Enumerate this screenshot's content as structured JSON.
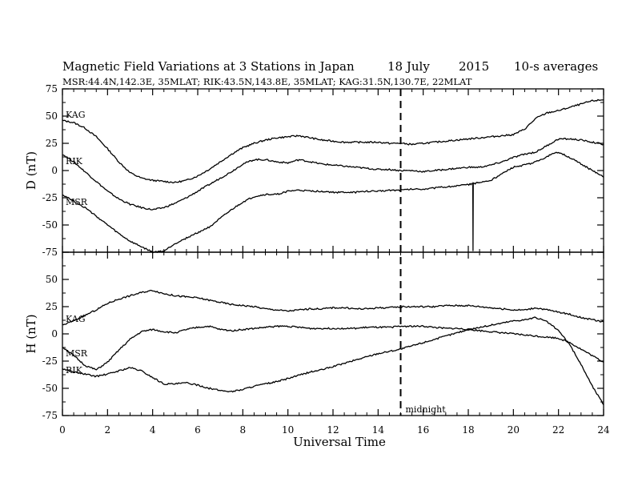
{
  "chart_data": {
    "type": "line",
    "title": "Magnetic Field Variations at 3 Stations in Japan",
    "title_date": "18 July",
    "title_year": "2015",
    "title_note": "10-s averages",
    "subtitle": "MSR:44.4N,142.3E, 35MLAT;   RIK:43.5N,143.8E, 35MLAT;   KAG:31.5N,130.7E, 22MLAT",
    "xlabel": "Universal Time",
    "x_ticks": [
      "0",
      "2",
      "4",
      "6",
      "8",
      "10",
      "12",
      "14",
      "16",
      "18",
      "20",
      "22",
      "24"
    ],
    "xlim": [
      0,
      24
    ],
    "midnight": {
      "x": 15,
      "label": "midnight"
    },
    "panels": [
      {
        "ylabel": "D (nT)",
        "ylim": [
          -75,
          75
        ],
        "y_ticks": [
          "75",
          "50",
          "25",
          "0",
          "-25",
          "-50",
          "-75"
        ],
        "series": [
          {
            "name": "KAG",
            "x": [
              0,
              0.5,
              1,
              1.5,
              2,
              2.5,
              3,
              3.5,
              4,
              4.5,
              5,
              5.5,
              6,
              6.5,
              7,
              7.5,
              8,
              8.5,
              9,
              9.5,
              10,
              10.5,
              11,
              11.5,
              12,
              12.5,
              13,
              13.5,
              14,
              14.5,
              15,
              15.5,
              16,
              16.5,
              17,
              17.5,
              18,
              18.5,
              19,
              19.5,
              20,
              20.5,
              21,
              21.5,
              22,
              22.5,
              23,
              23.5,
              24
            ],
            "y": [
              46,
              44,
              39,
              31,
              20,
              8,
              -2,
              -7,
              -9,
              -10,
              -11,
              -9,
              -5,
              1,
              8,
              15,
              21,
              25,
              28,
              30,
              31,
              32,
              30,
              28,
              27,
              26,
              26,
              26,
              26,
              25,
              25,
              24,
              25,
              26,
              27,
              28,
              29,
              30,
              31,
              32,
              33,
              38,
              48,
              53,
              55,
              58,
              61,
              64,
              65
            ]
          },
          {
            "name": "RIK",
            "x": [
              0,
              0.5,
              1,
              1.5,
              2,
              2.5,
              3,
              3.5,
              4,
              4.5,
              5,
              5.5,
              6,
              6.5,
              7,
              7.5,
              8,
              8.5,
              9,
              9.5,
              10,
              10.5,
              11,
              11.5,
              12,
              12.5,
              13,
              13.5,
              14,
              14.5,
              15,
              15.5,
              16,
              16.5,
              17,
              17.5,
              18,
              18.5,
              19,
              19.5,
              20,
              20.5,
              21,
              21.5,
              22,
              22.5,
              23,
              23.5,
              24
            ],
            "y": [
              15,
              8,
              -1,
              -10,
              -19,
              -26,
              -31,
              -34,
              -36,
              -34,
              -30,
              -25,
              -19,
              -13,
              -7,
              -1,
              6,
              10,
              10,
              8,
              7,
              10,
              8,
              6,
              5,
              4,
              3,
              2,
              1,
              1,
              0,
              0,
              -1,
              0,
              1,
              2,
              3,
              3,
              5,
              8,
              12,
              15,
              17,
              23,
              29,
              29,
              28,
              26,
              24
            ]
          },
          {
            "name": "MSR",
            "x": [
              0,
              0.5,
              1,
              1.5,
              2,
              2.5,
              3,
              3.5,
              4,
              4.5,
              5,
              5.5,
              6,
              6.5,
              7,
              7.5,
              8,
              8.5,
              9,
              9.5,
              10,
              10.5,
              11,
              11.5,
              12,
              12.5,
              13,
              13.5,
              14,
              14.5,
              15,
              15.5,
              16,
              16.5,
              17,
              17.5,
              18,
              18.2,
              18.21,
              18.22,
              18.5,
              19,
              19.5,
              20,
              20.5,
              21,
              21.5,
              22,
              22.5,
              23,
              23.5,
              24
            ],
            "y": [
              -22,
              -28,
              -34,
              -42,
              -50,
              -58,
              -65,
              -70,
              -75,
              -74,
              -67,
              -62,
              -57,
              -52,
              -44,
              -36,
              -29,
              -24,
              -22,
              -22,
              -19,
              -18,
              -19,
              -19,
              -20,
              -20,
              -20,
              -19,
              -19,
              -18,
              -18,
              -17,
              -17,
              -16,
              -15,
              -14,
              -13,
              -12,
              -74,
              -12,
              -11,
              -9,
              -3,
              3,
              5,
              8,
              13,
              17,
              12,
              6,
              0,
              -6
            ]
          }
        ],
        "series_labels": [
          "KAG",
          "RIK",
          "MSR"
        ]
      },
      {
        "ylabel": "H (nT)",
        "ylim": [
          -75,
          75
        ],
        "y_ticks": [
          "75",
          "50",
          "25",
          "0",
          "-25",
          "-50",
          "-75"
        ],
        "series": [
          {
            "name": "KAG",
            "x": [
              0,
              0.5,
              1,
              1.5,
              2,
              2.5,
              3,
              3.5,
              4,
              4.5,
              5,
              5.5,
              6,
              6.5,
              7,
              7.5,
              8,
              8.5,
              9,
              9.5,
              10,
              10.5,
              11,
              11.5,
              12,
              12.5,
              13,
              13.5,
              14,
              14.5,
              15,
              15.5,
              16,
              16.5,
              17,
              17.5,
              18,
              18.5,
              19,
              19.5,
              20,
              20.5,
              21,
              21.5,
              22,
              22.5,
              23,
              23.5,
              24
            ],
            "y": [
              8,
              12,
              17,
              22,
              28,
              32,
              35,
              38,
              40,
              37,
              35,
              34,
              33,
              31,
              29,
              27,
              26,
              25,
              23,
              22,
              21,
              22,
              23,
              23,
              24,
              24,
              23,
              23,
              24,
              24,
              25,
              25,
              25,
              25,
              26,
              26,
              26,
              25,
              24,
              23,
              22,
              22,
              24,
              22,
              20,
              18,
              15,
              13,
              11
            ]
          },
          {
            "name": "MSR",
            "x": [
              0,
              0.5,
              1,
              1.5,
              2,
              2.5,
              3,
              3.5,
              4,
              4.5,
              5,
              5.5,
              6,
              6.5,
              7,
              7.5,
              8,
              8.5,
              9,
              9.5,
              10,
              10.5,
              11,
              11.5,
              12,
              12.5,
              13,
              13.5,
              14,
              14.5,
              15,
              15.5,
              16,
              16.5,
              17,
              17.5,
              18,
              18.5,
              19,
              19.5,
              20,
              20.5,
              21,
              21.5,
              22,
              22.5,
              23,
              23.5,
              24
            ],
            "y": [
              -12,
              -20,
              -29,
              -33,
              -26,
              -15,
              -5,
              2,
              4,
              2,
              1,
              4,
              6,
              7,
              4,
              3,
              4,
              5,
              6,
              7,
              7,
              6,
              5,
              5,
              5,
              5,
              5,
              6,
              6,
              6,
              7,
              7,
              7,
              6,
              5,
              5,
              4,
              3,
              2,
              1,
              0,
              -1,
              -2,
              -3,
              -4,
              -8,
              -14,
              -20,
              -26
            ]
          },
          {
            "name": "RIK",
            "x": [
              0,
              0.5,
              1,
              1.5,
              2,
              2.5,
              3,
              3.5,
              4,
              4.5,
              5,
              5.5,
              6,
              6.5,
              7,
              7.5,
              8,
              8.5,
              9,
              9.5,
              10,
              10.5,
              11,
              11.5,
              12,
              12.5,
              13,
              13.5,
              14,
              14.5,
              15,
              15.5,
              16,
              16.5,
              17,
              17.5,
              18,
              18.5,
              19,
              19.5,
              20,
              20.5,
              21,
              21.5,
              22,
              22.5,
              23,
              23.5,
              24
            ],
            "y": [
              -32,
              -35,
              -37,
              -39,
              -37,
              -34,
              -31,
              -34,
              -40,
              -46,
              -46,
              -45,
              -47,
              -50,
              -52,
              -53,
              -51,
              -48,
              -46,
              -44,
              -41,
              -38,
              -35,
              -33,
              -30,
              -27,
              -24,
              -21,
              -18,
              -16,
              -14,
              -11,
              -8,
              -5,
              -2,
              1,
              4,
              6,
              8,
              10,
              12,
              13,
              15,
              11,
              3,
              -10,
              -28,
              -48,
              -65
            ]
          }
        ],
        "series_labels": [
          "KAG",
          "MSR",
          "RIK"
        ]
      }
    ]
  }
}
